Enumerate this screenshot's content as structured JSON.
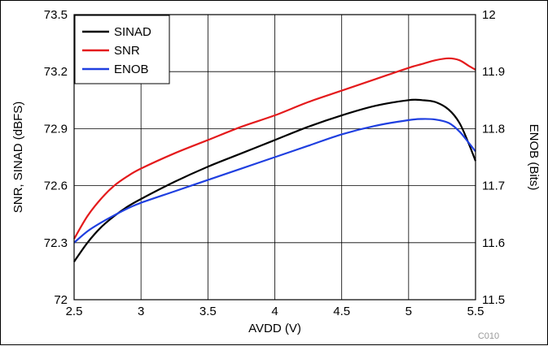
{
  "chart_data": {
    "type": "line",
    "xlabel": "AVDD (V)",
    "ylabel_left": "SNR, SINAD (dBFS)",
    "ylabel_right": "ENOB (Bits)",
    "xlim": [
      2.5,
      5.5
    ],
    "ylim_left": [
      72,
      73.5
    ],
    "ylim_right": [
      11.5,
      12
    ],
    "x_ticks": [
      "2.5",
      "3",
      "3.5",
      "4",
      "4.5",
      "5",
      "5.5"
    ],
    "y_left_ticks": [
      "72",
      "72.3",
      "72.6",
      "72.9",
      "73.2",
      "73.5"
    ],
    "y_right_ticks": [
      "11.5",
      "11.6",
      "11.7",
      "11.8",
      "11.9",
      "12"
    ],
    "grid": true,
    "legend_position": "top-left",
    "figure_code": "C010",
    "series": [
      {
        "name": "SINAD",
        "axis": "left",
        "color": "#000000",
        "x": [
          2.5,
          2.6,
          2.7,
          2.8,
          2.9,
          3.0,
          3.25,
          3.5,
          3.75,
          4.0,
          4.25,
          4.5,
          4.75,
          5.0,
          5.1,
          5.2,
          5.3,
          5.38,
          5.45,
          5.5
        ],
        "y": [
          72.2,
          72.3,
          72.38,
          72.44,
          72.49,
          72.53,
          72.62,
          72.7,
          72.77,
          72.84,
          72.91,
          72.97,
          73.02,
          73.05,
          73.05,
          73.04,
          73.0,
          72.93,
          72.82,
          72.73
        ]
      },
      {
        "name": "SNR",
        "axis": "left",
        "color": "#e41a1c",
        "x": [
          2.5,
          2.6,
          2.7,
          2.8,
          2.9,
          3.0,
          3.25,
          3.5,
          3.75,
          4.0,
          4.25,
          4.5,
          4.75,
          5.0,
          5.1,
          5.2,
          5.3,
          5.38,
          5.45,
          5.5
        ],
        "y": [
          72.32,
          72.44,
          72.53,
          72.6,
          72.65,
          72.69,
          72.77,
          72.84,
          72.91,
          72.97,
          73.04,
          73.1,
          73.16,
          73.22,
          73.24,
          73.26,
          73.27,
          73.26,
          73.23,
          73.21
        ]
      },
      {
        "name": "ENOB",
        "axis": "right",
        "color": "#1f3fe0",
        "x": [
          2.5,
          2.6,
          2.7,
          2.8,
          2.9,
          3.0,
          3.25,
          3.5,
          3.75,
          4.0,
          4.25,
          4.5,
          4.75,
          5.0,
          5.1,
          5.2,
          5.3,
          5.38,
          5.45,
          5.5
        ],
        "y": [
          11.6,
          11.62,
          11.635,
          11.648,
          11.66,
          11.67,
          11.69,
          11.71,
          11.73,
          11.75,
          11.77,
          11.79,
          11.805,
          11.815,
          11.817,
          11.816,
          11.81,
          11.795,
          11.775,
          11.76
        ]
      }
    ]
  }
}
